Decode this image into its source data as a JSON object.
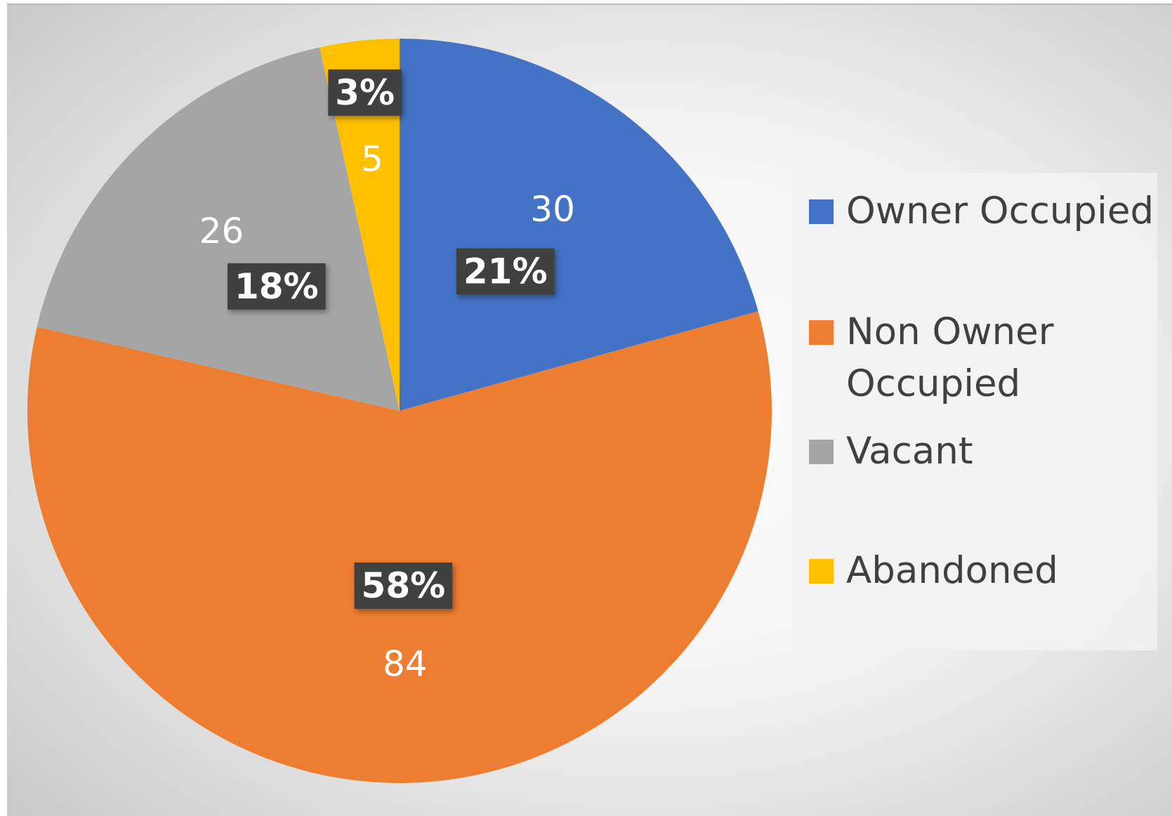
{
  "chart_data": {
    "type": "pie",
    "categories": [
      "Owner Occupied",
      "Non Owner Occupied",
      "Vacant",
      "Abandoned"
    ],
    "values": [
      30,
      84,
      26,
      5
    ],
    "percent_labels": [
      "21%",
      "58%",
      "18%",
      "3%"
    ],
    "colors": [
      "#4472c4",
      "#ed7d31",
      "#a5a5a5",
      "#ffc000"
    ],
    "legend": "right"
  }
}
